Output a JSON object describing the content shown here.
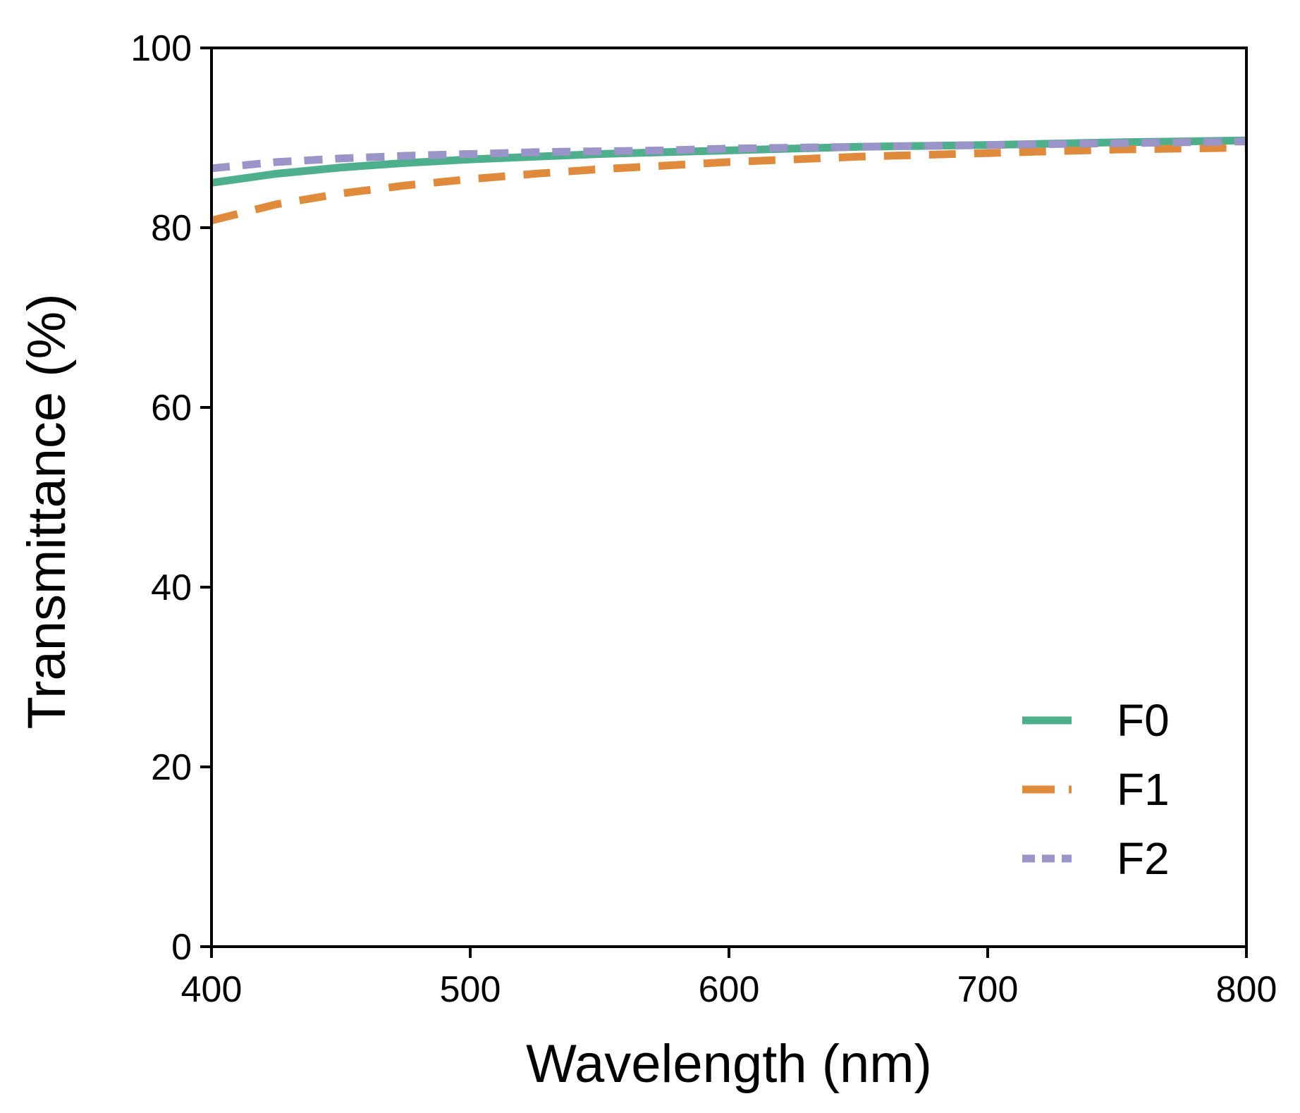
{
  "chart_data": {
    "type": "line",
    "title": "",
    "xlabel": "Wavelength (nm)",
    "ylabel": "Transmittance (%)",
    "xlim": [
      400,
      800
    ],
    "ylim": [
      0,
      100
    ],
    "xticks": [
      400,
      500,
      600,
      700,
      800
    ],
    "yticks": [
      0,
      20,
      40,
      60,
      80,
      100
    ],
    "grid": false,
    "legend_position": "bottom-right",
    "series": [
      {
        "name": "F0",
        "color": "#4daf8c",
        "style": "solid",
        "x": [
          400,
          425,
          450,
          475,
          500,
          525,
          550,
          575,
          600,
          625,
          650,
          675,
          700,
          725,
          750,
          775,
          800
        ],
        "y": [
          85.0,
          86.0,
          86.7,
          87.2,
          87.6,
          87.9,
          88.2,
          88.4,
          88.6,
          88.8,
          89.0,
          89.1,
          89.2,
          89.35,
          89.5,
          89.6,
          89.7
        ]
      },
      {
        "name": "F1",
        "color": "#e08a3c",
        "style": "dashed",
        "x": [
          400,
          425,
          450,
          475,
          500,
          525,
          550,
          575,
          600,
          625,
          650,
          675,
          700,
          725,
          750,
          775,
          800
        ],
        "y": [
          80.8,
          82.6,
          83.8,
          84.7,
          85.4,
          86.0,
          86.5,
          86.9,
          87.3,
          87.6,
          87.9,
          88.1,
          88.3,
          88.5,
          88.7,
          88.8,
          88.9
        ]
      },
      {
        "name": "F2",
        "color": "#9b94c8",
        "style": "short-dashed",
        "x": [
          400,
          425,
          450,
          475,
          500,
          525,
          550,
          575,
          600,
          625,
          650,
          675,
          700,
          725,
          750,
          775,
          800
        ],
        "y": [
          86.6,
          87.3,
          87.7,
          88.0,
          88.2,
          88.4,
          88.5,
          88.6,
          88.8,
          88.9,
          89.0,
          89.1,
          89.2,
          89.3,
          89.4,
          89.5,
          89.6
        ]
      }
    ]
  }
}
